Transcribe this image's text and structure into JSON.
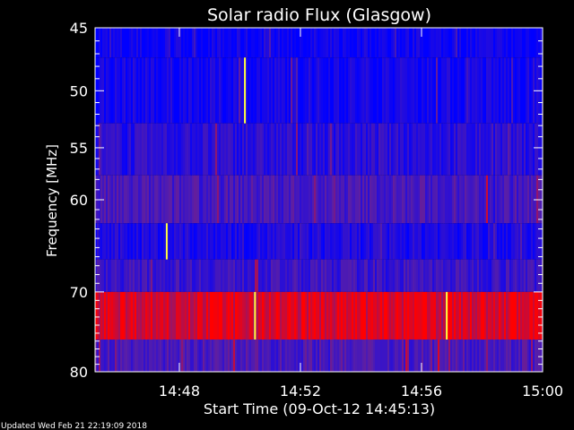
{
  "chart_data": {
    "type": "heatmap",
    "title": "Solar radio Flux (Glasgow)",
    "xlabel": "Start Time (09-Oct-12 14:45:13)",
    "ylabel": "Frequency [MHz]",
    "x_ticks": [
      "14:48",
      "14:52",
      "14:56",
      "15:00"
    ],
    "y_ticks": [
      "45",
      "50",
      "55",
      "60",
      "70",
      "80"
    ],
    "y_scale": "log",
    "xlim": [
      "14:45:13",
      "15:00:00"
    ],
    "ylim": [
      45,
      80
    ],
    "colors": {
      "low": "#0000ff",
      "mid": "#5a1fa6",
      "high": "#ff0000",
      "peak": "#ffff40"
    },
    "bands": [
      {
        "from": 45,
        "to": 47.3,
        "level": 0.06
      },
      {
        "from": 47.3,
        "to": 52.8,
        "level": 0.1
      },
      {
        "from": 52.8,
        "to": 57.6,
        "level": 0.22
      },
      {
        "from": 57.6,
        "to": 62.4,
        "level": 0.38
      },
      {
        "from": 62.4,
        "to": 66.3,
        "level": 0.16
      },
      {
        "from": 66.3,
        "to": 70.0,
        "level": 0.32
      },
      {
        "from": 70.0,
        "to": 75.8,
        "level": 0.88
      },
      {
        "from": 75.8,
        "to": 80.0,
        "level": 0.4
      }
    ],
    "bursts": [
      {
        "time": "14:50:10",
        "from": 47.3,
        "to": 52.8
      },
      {
        "time": "14:47:35",
        "from": 62.4,
        "to": 66.3
      },
      {
        "time": "14:50:30",
        "from": 70.0,
        "to": 75.8
      },
      {
        "time": "14:56:50",
        "from": 70.0,
        "to": 75.8
      }
    ]
  },
  "footer": {
    "updated": "Updated Wed Feb 21 22:19:09 2018"
  }
}
